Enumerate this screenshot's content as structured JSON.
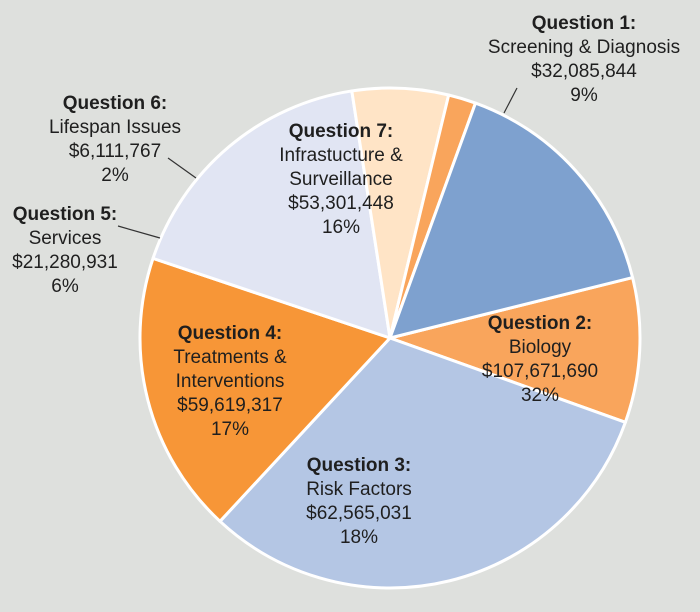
{
  "chart_data": {
    "type": "pie",
    "slices": [
      {
        "question": "Question 1:",
        "label": "Screening & Diagnosis",
        "amount": "$32,085,844",
        "percent_label": "9%",
        "value": 32085844,
        "color": "#f9a55c"
      },
      {
        "question": "Question 2:",
        "label": "Biology",
        "amount": "$107,671,690",
        "percent_label": "32%",
        "value": 107671690,
        "color": "#b4c6e4"
      },
      {
        "question": "Question 3:",
        "label": "Risk Factors",
        "amount": "$62,565,031",
        "percent_label": "18%",
        "value": 62565031,
        "color": "#f79637"
      },
      {
        "question": "Question 4:",
        "label_lines": [
          "Treatments &",
          "Interventions"
        ],
        "amount": "$59,619,317",
        "percent_label": "17%",
        "value": 59619317,
        "color": "#e1e5f3"
      },
      {
        "question": "Question 5:",
        "label": "Services",
        "amount": "$21,280,931",
        "percent_label": "6%",
        "value": 21280931,
        "color": "#ffe4c6"
      },
      {
        "question": "Question 6:",
        "label": "Lifespan Issues",
        "amount": "$6,111,767",
        "percent_label": "2%",
        "value": 6111767,
        "color": "#f9a55c"
      },
      {
        "question": "Question 7:",
        "label_lines": [
          "Infrastucture &",
          "Surveillance"
        ],
        "amount": "$53,301,448",
        "percent_label": "16%",
        "value": 53301448,
        "color": "#7ea1cf"
      }
    ]
  }
}
